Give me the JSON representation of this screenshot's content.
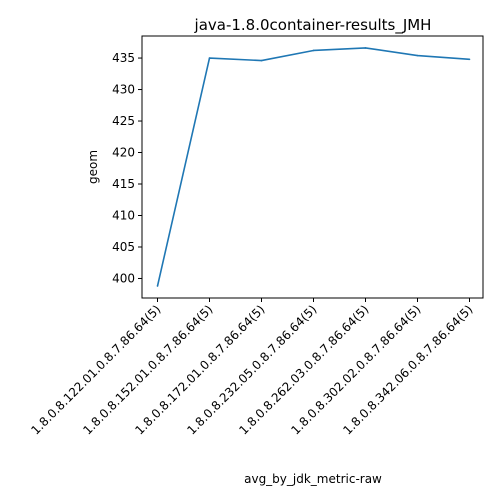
{
  "chart_data": {
    "type": "line",
    "title": "java-1.8.0container-results_JMH",
    "xlabel": "avg_by_jdk_metric-raw",
    "ylabel": "geom",
    "categories": [
      "1.8.0.8.122.01.0.8.7.86.64(5)",
      "1.8.0.8.152.01.0.8.7.86.64(5)",
      "1.8.0.8.172.01.0.8.7.86.64(5)",
      "1.8.0.8.232.05.0.8.7.86.64(5)",
      "1.8.0.8.262.03.0.8.7.86.64(5)",
      "1.8.0.8.302.02.0.8.7.86.64(5)",
      "1.8.0.8.342.06.0.8.7.86.64(5)"
    ],
    "series": [
      {
        "values": [
          398.8,
          435.0,
          434.6,
          436.2,
          436.6,
          435.4,
          434.8
        ],
        "color": "#1f77b4"
      }
    ],
    "ylim": [
      396.9,
      438.5
    ],
    "yticks": [
      400,
      405,
      410,
      415,
      420,
      425,
      430,
      435
    ],
    "grid": false,
    "legend": "none"
  }
}
